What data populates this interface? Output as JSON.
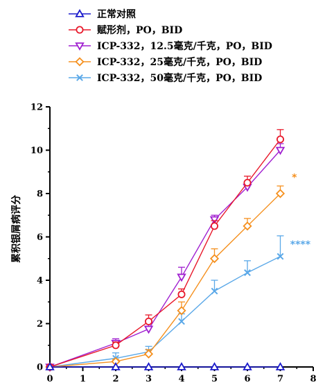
{
  "chart_data": {
    "type": "line",
    "title": "",
    "xlabel": "",
    "ylabel": "累积银屑病评分",
    "xlim": [
      0,
      8
    ],
    "ylim": [
      0,
      12
    ],
    "x_ticks": [
      0,
      1,
      2,
      3,
      4,
      5,
      6,
      7,
      8
    ],
    "y_ticks": [
      0,
      2,
      4,
      6,
      8,
      10,
      12
    ],
    "x_tick_labels": [
      "0",
      "1",
      "2",
      "3",
      "4",
      "5",
      "6",
      "7",
      "8"
    ],
    "y_tick_labels": [
      "0",
      "2",
      "4",
      "6",
      "8",
      "10",
      "12"
    ],
    "x_minor_step": 0.5,
    "y_minor_step": 1,
    "grid": false,
    "legend_position": "top-left",
    "series": [
      {
        "name": "正常对照",
        "color": "#1a1acc",
        "marker": "triangle-up",
        "x": [
          0,
          2,
          3,
          4,
          5,
          6,
          7
        ],
        "values": [
          0,
          0,
          0,
          0,
          0,
          0,
          0
        ],
        "error": [
          0,
          0,
          0,
          0,
          0,
          0,
          0
        ]
      },
      {
        "name": "赋形剂，PO，BID",
        "color": "#e8182a",
        "marker": "circle",
        "x": [
          0,
          2,
          3,
          4,
          5,
          6,
          7
        ],
        "values": [
          0,
          1.0,
          2.1,
          3.35,
          6.5,
          8.5,
          10.5
        ],
        "error": [
          0,
          0.15,
          0.3,
          0.25,
          0.25,
          0.3,
          0.45
        ]
      },
      {
        "name": "ICP-332，12.5毫克/千克，PO，BID",
        "color": "#a020d0",
        "marker": "triangle-down",
        "x": [
          0,
          2,
          3,
          4,
          5,
          6,
          7
        ],
        "values": [
          0,
          1.1,
          1.75,
          4.15,
          6.8,
          8.3,
          10.0
        ],
        "error": [
          0,
          0.2,
          0.3,
          0.45,
          0.2,
          0.25,
          0.3
        ]
      },
      {
        "name": "ICP-332，25毫克/千克，PO，BID",
        "color": "#f5901e",
        "marker": "diamond",
        "x": [
          0,
          2,
          3,
          4,
          5,
          6,
          7
        ],
        "values": [
          0,
          0.25,
          0.6,
          2.6,
          5.0,
          6.5,
          8.0
        ],
        "error": [
          0,
          0.1,
          0.2,
          0.4,
          0.45,
          0.35,
          0.35
        ]
      },
      {
        "name": "ICP-332，50毫克/千克，PO，BID",
        "color": "#5aa8e8",
        "marker": "x",
        "x": [
          0,
          2,
          3,
          4,
          5,
          6,
          7
        ],
        "values": [
          0,
          0.4,
          0.7,
          2.1,
          3.5,
          4.35,
          5.1
        ],
        "error": [
          0,
          0.25,
          0.25,
          0.35,
          0.5,
          0.55,
          0.95
        ]
      }
    ],
    "annotations": [
      {
        "text": "*",
        "color": "#f5901e",
        "x": 7.35,
        "y": 8.6
      },
      {
        "text": "****",
        "color": "#5aa8e8",
        "x": 7.3,
        "y": 5.5
      }
    ]
  }
}
